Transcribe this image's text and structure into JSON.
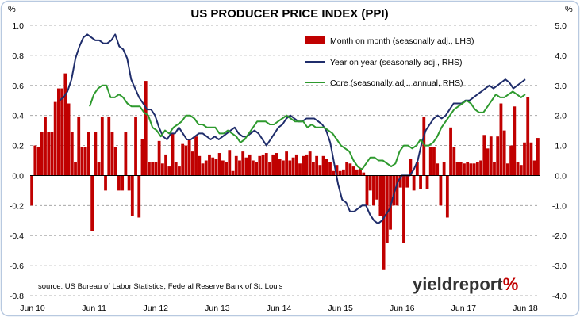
{
  "chart_data": {
    "type": "bar+line",
    "title": "US PRODUCER PRICE INDEX (PPI)",
    "left_axis": {
      "unit_label": "%",
      "ylim": [
        -0.8,
        1.0
      ],
      "ticks": [
        "1.0",
        "0.8",
        "0.6",
        "0.4",
        "0.2",
        "0.0",
        "-0.2",
        "-0.4",
        "-0.6",
        "-0.8"
      ]
    },
    "right_axis": {
      "unit_label": "%",
      "ylim": [
        -4.0,
        5.0
      ],
      "ticks": [
        "5.0",
        "4.0",
        "3.0",
        "2.0",
        "1.0",
        "0.0",
        "-1.0",
        "-2.0",
        "-3.0",
        "-4.0"
      ]
    },
    "x_tick_labels": [
      "Jun 10",
      "Jun 11",
      "Jun 12",
      "Jun 13",
      "Jun 14",
      "Jun 15",
      "Jun 16",
      "Jun 17",
      "Jun 18"
    ],
    "grid": "horizontal, dashed",
    "legend_position": "top-right",
    "source_note": "source: US Bureau of Labor Statistics, Federal Reserve Bank of St. Louis",
    "logo": {
      "text_main": "yieldreport",
      "text_symbol": "%"
    },
    "colors": {
      "bars": "#c00000",
      "yoy": "#1f2d6b",
      "core": "#2e9a2e",
      "grid": "#9a9a9a",
      "frame": "#b8c9e0",
      "symbol": "#c00000"
    },
    "series": [
      {
        "name": "Month on month (seasonally adj., LHS)",
        "type": "bar",
        "axis": "left",
        "values": [
          -0.2,
          0.2,
          0.19,
          0.29,
          0.39,
          0.29,
          0.29,
          0.49,
          0.58,
          0.58,
          0.68,
          0.48,
          0.29,
          0.09,
          0.39,
          0.19,
          0.19,
          0.29,
          -0.37,
          0.29,
          0.09,
          0.39,
          -0.1,
          0.39,
          0.29,
          0.19,
          -0.1,
          -0.1,
          0.29,
          -0.1,
          -0.27,
          0.39,
          -0.28,
          0.24,
          0.63,
          0.09,
          0.09,
          0.09,
          0.23,
          0.08,
          0.14,
          0.06,
          0.28,
          0.09,
          0.06,
          0.21,
          0.2,
          0.24,
          0.16,
          0.26,
          0.13,
          0.08,
          0.1,
          0.14,
          0.12,
          0.11,
          0.15,
          0.1,
          0.09,
          0.17,
          0.03,
          0.13,
          0.1,
          0.16,
          0.12,
          0.14,
          0.1,
          0.09,
          0.13,
          0.14,
          0.15,
          0.09,
          0.14,
          0.15,
          0.11,
          0.1,
          0.16,
          0.1,
          0.12,
          0.14,
          0.08,
          0.13,
          0.14,
          0.16,
          0.09,
          0.13,
          0.07,
          0.13,
          0.11,
          0.09,
          0.03,
          0.07,
          0.03,
          0.04,
          0.09,
          0.08,
          0.06,
          0.04,
          0.05,
          0.02,
          -0.2,
          -0.1,
          -0.2,
          -0.16,
          -0.27,
          -0.63,
          -0.45,
          -0.36,
          -0.2,
          -0.2,
          -0.08,
          -0.45,
          -0.08,
          0.11,
          -0.1,
          0.09,
          -0.09,
          0.39,
          -0.09,
          0.19,
          0.19,
          0.08,
          -0.2,
          0.09,
          -0.28,
          0.32,
          0.19,
          0.09,
          0.09,
          0.08,
          0.09,
          0.08,
          0.08,
          0.09,
          0.1,
          0.27,
          0.18,
          0.26,
          0.09,
          0.26,
          0.48,
          0.3,
          0.08,
          0.2,
          0.46,
          0.09,
          0.07,
          0.22,
          0.52,
          0.22,
          0.1,
          0.25
        ]
      },
      {
        "name": "Year on year (seasonally adj., RHS)",
        "type": "line",
        "axis": "right",
        "values": [
          2.5,
          2.6,
          2.8,
          3.2,
          3.9,
          4.3,
          4.6,
          4.7,
          4.6,
          4.5,
          4.5,
          4.4,
          4.4,
          4.5,
          4.7,
          4.3,
          4.2,
          3.9,
          3.2,
          2.9,
          2.6,
          2.4,
          2.2,
          2.2,
          2.0,
          1.6,
          1.3,
          1.2,
          1.4,
          1.4,
          1.6,
          1.4,
          1.2,
          1.2,
          1.3,
          1.4,
          1.4,
          1.3,
          1.2,
          1.3,
          1.2,
          1.3,
          1.4,
          1.5,
          1.6,
          1.4,
          1.3,
          1.3,
          1.4,
          1.5,
          1.4,
          1.2,
          1.0,
          1.2,
          1.4,
          1.6,
          1.7,
          1.9,
          2.0,
          1.9,
          1.8,
          1.8,
          1.9,
          1.9,
          1.9,
          1.8,
          1.7,
          1.5,
          1.1,
          0.4,
          -0.3,
          -0.8,
          -0.9,
          -1.2,
          -1.2,
          -1.1,
          -1.0,
          -1.0,
          -1.3,
          -1.5,
          -1.6,
          -1.5,
          -1.3,
          -1.1,
          -0.6,
          -0.2,
          0.0,
          0.0,
          0.0,
          0.2,
          0.5,
          1.1,
          1.5,
          1.7,
          1.9,
          2.0,
          1.9,
          2.0,
          2.2,
          2.4,
          2.4,
          2.4,
          2.5,
          2.5,
          2.6,
          2.7,
          2.8,
          2.9,
          3.0,
          2.9,
          3.0,
          3.1,
          3.2,
          3.1,
          2.9,
          3.0,
          3.1,
          3.2
        ]
      },
      {
        "name": "Core (seasonally adj., annual, RHS)",
        "type": "line",
        "axis": "right",
        "values": [
          2.3,
          2.7,
          2.9,
          3.0,
          3.0,
          2.6,
          2.6,
          2.7,
          2.6,
          2.4,
          2.3,
          2.3,
          2.3,
          2.1,
          2.0,
          1.6,
          1.5,
          1.3,
          1.5,
          1.4,
          1.6,
          1.7,
          1.8,
          2.0,
          2.0,
          1.9,
          1.7,
          1.7,
          1.6,
          1.6,
          1.6,
          1.4,
          1.4,
          1.5,
          1.4,
          1.3,
          1.1,
          1.2,
          1.4,
          1.6,
          1.8,
          1.8,
          1.8,
          1.7,
          1.7,
          1.8,
          1.9,
          2.0,
          1.9,
          1.8,
          1.8,
          1.8,
          1.6,
          1.7,
          1.6,
          1.6,
          1.6,
          1.5,
          1.4,
          1.2,
          1.0,
          0.9,
          0.8,
          0.5,
          0.3,
          0.2,
          0.4,
          0.6,
          0.6,
          0.5,
          0.5,
          0.4,
          0.3,
          0.4,
          0.8,
          1.0,
          1.0,
          0.9,
          1.0,
          1.2,
          1.0,
          1.0,
          1.1,
          1.3,
          1.6,
          1.8,
          2.0,
          2.2,
          2.3,
          2.4,
          2.5,
          2.4,
          2.2,
          2.1,
          2.1,
          2.3,
          2.5,
          2.7,
          2.6,
          2.6,
          2.7,
          2.8,
          2.7,
          2.6,
          2.7
        ]
      }
    ]
  }
}
